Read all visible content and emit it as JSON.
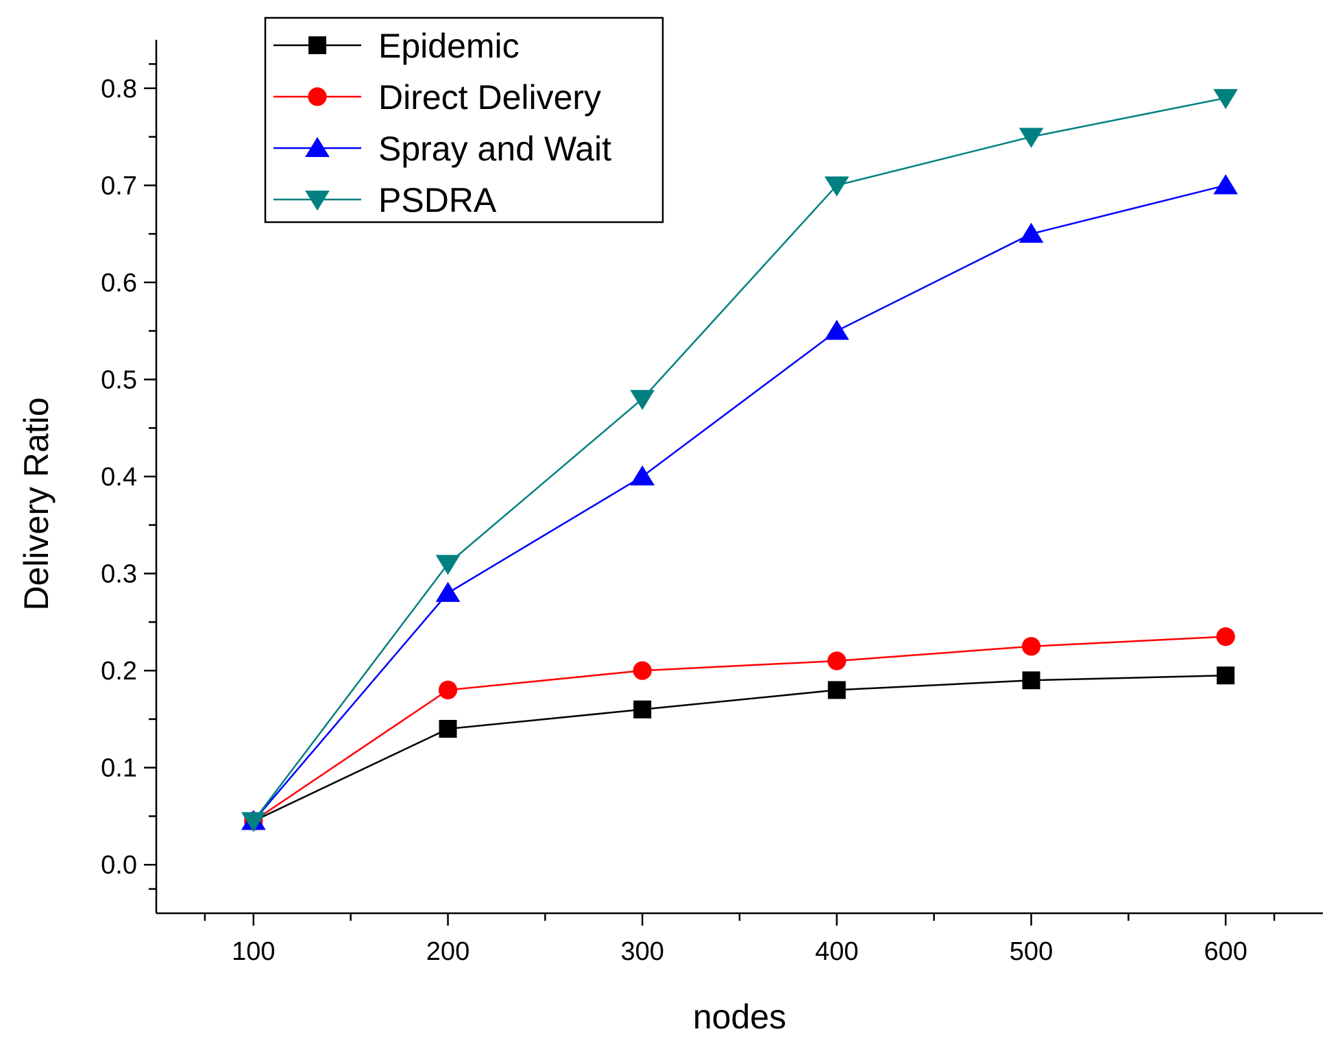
{
  "chart_data": {
    "type": "line",
    "title": "",
    "xlabel": "nodes",
    "ylabel": "Delivery Ratio",
    "x": [
      100,
      200,
      300,
      400,
      500,
      600
    ],
    "xlim": [
      50,
      650
    ],
    "ylim": [
      -0.05,
      0.85
    ],
    "x_ticks": [
      100,
      200,
      300,
      400,
      500,
      600
    ],
    "x_tick_labels": [
      "100",
      "200",
      "300",
      "400",
      "500",
      "600"
    ],
    "y_ticks": [
      0.0,
      0.1,
      0.2,
      0.3,
      0.4,
      0.5,
      0.6,
      0.7,
      0.8
    ],
    "y_tick_labels": [
      "0.0",
      "0.1",
      "0.2",
      "0.3",
      "0.4",
      "0.5",
      "0.6",
      "0.7",
      "0.8"
    ],
    "grid": false,
    "legend_position": "top-left",
    "series": [
      {
        "name": "Epidemic",
        "color": "#000000",
        "marker": "square",
        "values": [
          0.045,
          0.14,
          0.16,
          0.18,
          0.19,
          0.195
        ]
      },
      {
        "name": "Direct Delivery",
        "color": "#ff0000",
        "marker": "circle",
        "values": [
          0.045,
          0.18,
          0.2,
          0.21,
          0.225,
          0.235
        ]
      },
      {
        "name": "Spray and Wait",
        "color": "#0000ff",
        "marker": "triangle-up",
        "values": [
          0.045,
          0.28,
          0.4,
          0.55,
          0.65,
          0.7
        ]
      },
      {
        "name": "PSDRA",
        "color": "#008080",
        "marker": "triangle-down",
        "values": [
          0.045,
          0.31,
          0.48,
          0.7,
          0.75,
          0.79
        ]
      }
    ]
  }
}
